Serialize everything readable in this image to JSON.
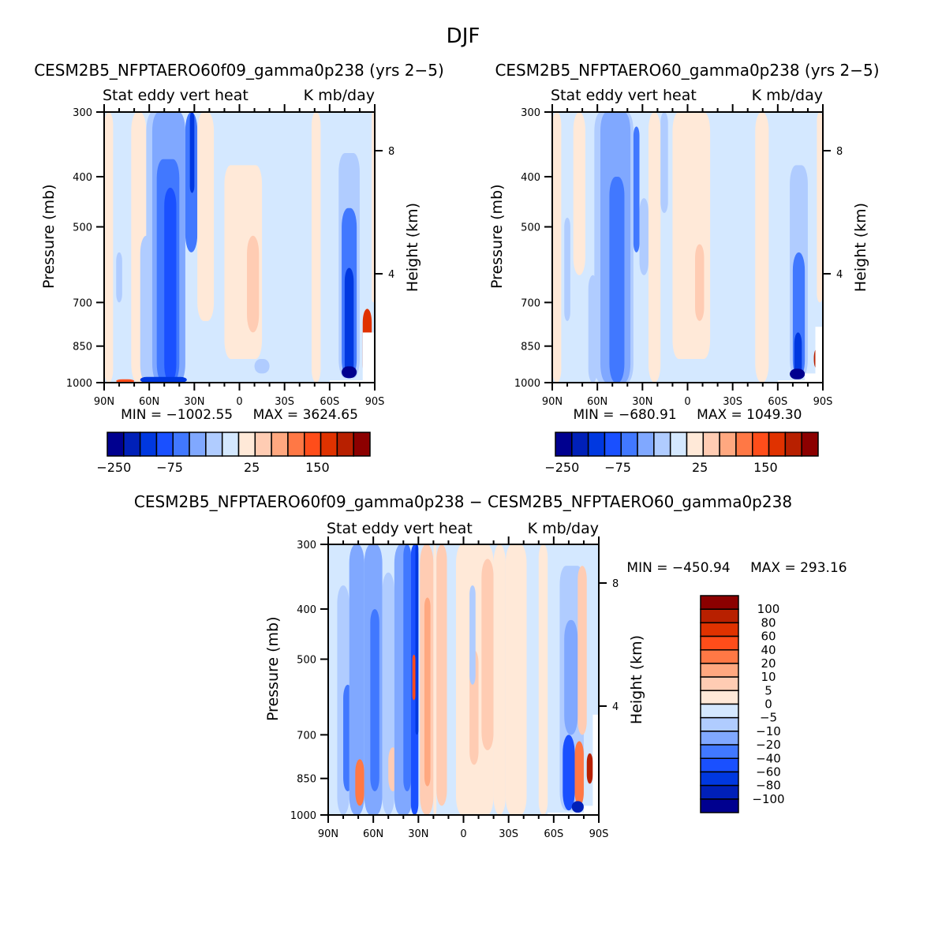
{
  "figure": {
    "title": "DJF",
    "colors": {
      "main_scale": [
        "#00008f",
        "#0020b8",
        "#0038e0",
        "#1a50ff",
        "#4178ff",
        "#80a8ff",
        "#b0ccff",
        "#d4e8ff",
        "#ffe9d8",
        "#ffccb3",
        "#ffa880",
        "#ff7845",
        "#ff4d1a",
        "#e03200",
        "#b82000",
        "#8c0000"
      ],
      "missing": "#ffffff",
      "frame": "#000000"
    }
  },
  "chart_data": [
    {
      "id": "panel-1",
      "type": "heatmap",
      "title": "CESM2B5_NFPTAERO60f09_gamma0p238 (yrs 2−5)",
      "subtitle_left": "Stat eddy vert heat",
      "subtitle_right": "K mb/day",
      "xlabel": "",
      "ylabel": "Pressure (mb)",
      "ylabel_right": "Height (km)",
      "x_ticks": [
        "90N",
        "60N",
        "30N",
        "0",
        "30S",
        "60S",
        "90S"
      ],
      "x_range": [
        90,
        -90
      ],
      "y_ticks": [
        "300",
        "400",
        "500",
        "700",
        "850",
        "1000"
      ],
      "y_tick_values": [
        300,
        400,
        500,
        700,
        850,
        1000
      ],
      "y_range": [
        300,
        1000
      ],
      "y_scale": "log",
      "y_right_ticks": [
        "8",
        "4"
      ],
      "stats": "MIN = −1002.55   MAX = 3624.65",
      "min": -1002.55,
      "max": 3624.65,
      "colorbar": {
        "orientation": "horizontal",
        "labels": [
          "−250",
          "−75",
          "25",
          "150"
        ],
        "n_bins": 16
      },
      "bands": [
        {
          "lat_from": 90,
          "lat_to": 84,
          "p_top": 300,
          "p_bot": 1000,
          "bin": 8
        },
        {
          "lat_from": 84,
          "lat_to": 72,
          "p_top": 330,
          "p_bot": 980,
          "bin": 7
        },
        {
          "lat_from": 82,
          "lat_to": 78,
          "p_top": 560,
          "p_bot": 700,
          "bin": 6
        },
        {
          "lat_from": 72,
          "lat_to": 62,
          "p_top": 300,
          "p_bot": 1000,
          "bin": 8
        },
        {
          "lat_from": 66,
          "lat_to": 58,
          "p_top": 520,
          "p_bot": 1000,
          "bin": 6
        },
        {
          "lat_from": 62,
          "lat_to": 50,
          "p_top": 300,
          "p_bot": 1000,
          "bin": 6
        },
        {
          "lat_from": 58,
          "lat_to": 36,
          "p_top": 300,
          "p_bot": 1000,
          "bin": 5
        },
        {
          "lat_from": 55,
          "lat_to": 40,
          "p_top": 370,
          "p_bot": 1000,
          "bin": 4
        },
        {
          "lat_from": 50,
          "lat_to": 42,
          "p_top": 420,
          "p_bot": 1000,
          "bin": 3
        },
        {
          "lat_from": 36,
          "lat_to": 28,
          "p_top": 300,
          "p_bot": 560,
          "bin": 4
        },
        {
          "lat_from": 33,
          "lat_to": 30,
          "p_top": 300,
          "p_bot": 430,
          "bin": 2
        },
        {
          "lat_from": 28,
          "lat_to": 17,
          "p_top": 300,
          "p_bot": 760,
          "bin": 8
        },
        {
          "lat_from": 10,
          "lat_to": -15,
          "p_top": 380,
          "p_bot": 900,
          "bin": 8
        },
        {
          "lat_from": -5,
          "lat_to": -13,
          "p_top": 520,
          "p_bot": 800,
          "bin": 9
        },
        {
          "lat_from": -10,
          "lat_to": -20,
          "p_top": 900,
          "p_bot": 960,
          "bin": 6
        },
        {
          "lat_from": -48,
          "lat_to": -54,
          "p_top": 300,
          "p_bot": 1000,
          "bin": 8
        },
        {
          "lat_from": -66,
          "lat_to": -80,
          "p_top": 360,
          "p_bot": 980,
          "bin": 6
        },
        {
          "lat_from": -68,
          "lat_to": -78,
          "p_top": 460,
          "p_bot": 980,
          "bin": 4
        },
        {
          "lat_from": -70,
          "lat_to": -76,
          "p_top": 600,
          "p_bot": 980,
          "bin": 2
        },
        {
          "lat_from": -68,
          "lat_to": -78,
          "p_top": 930,
          "p_bot": 980,
          "bin": 0
        },
        {
          "lat_from": -82,
          "lat_to": -88,
          "p_top": 720,
          "p_bot": 980,
          "bin": 13
        },
        {
          "lat_from": -88,
          "lat_to": -90,
          "p_top": 300,
          "p_bot": 700,
          "bin": 8
        },
        {
          "lat_from": 82,
          "lat_to": 70,
          "p_top": 985,
          "p_bot": 1000,
          "bin": 12
        },
        {
          "lat_from": 66,
          "lat_to": 35,
          "p_top": 975,
          "p_bot": 1000,
          "bin": 2
        }
      ],
      "missing_regions": [
        {
          "lat_from": -60,
          "lat_to": -90,
          "p_top": 990,
          "p_bot": 1000
        },
        {
          "lat_from": -82,
          "lat_to": -90,
          "p_top": 800,
          "p_bot": 1000
        }
      ]
    },
    {
      "id": "panel-2",
      "type": "heatmap",
      "title": "CESM2B5_NFPTAERO60_gamma0p238 (yrs 2−5)",
      "subtitle_left": "Stat eddy vert heat",
      "subtitle_right": "K mb/day",
      "xlabel": "",
      "ylabel": "Pressure (mb)",
      "ylabel_right": "Height (km)",
      "x_ticks": [
        "90N",
        "60N",
        "30N",
        "0",
        "30S",
        "60S",
        "90S"
      ],
      "x_range": [
        90,
        -90
      ],
      "y_ticks": [
        "300",
        "400",
        "500",
        "700",
        "850",
        "1000"
      ],
      "y_tick_values": [
        300,
        400,
        500,
        700,
        850,
        1000
      ],
      "y_range": [
        300,
        1000
      ],
      "y_scale": "log",
      "y_right_ticks": [
        "8",
        "4"
      ],
      "stats": "MIN = −680.91   MAX = 1049.30",
      "min": -680.91,
      "max": 1049.3,
      "colorbar": {
        "orientation": "horizontal",
        "labels": [
          "−250",
          "−75",
          "25",
          "150"
        ],
        "n_bins": 16
      },
      "bands": [
        {
          "lat_from": 90,
          "lat_to": 84,
          "p_top": 300,
          "p_bot": 1000,
          "bin": 8
        },
        {
          "lat_from": 84,
          "lat_to": 76,
          "p_top": 320,
          "p_bot": 1000,
          "bin": 7
        },
        {
          "lat_from": 82,
          "lat_to": 78,
          "p_top": 480,
          "p_bot": 760,
          "bin": 6
        },
        {
          "lat_from": 76,
          "lat_to": 68,
          "p_top": 300,
          "p_bot": 620,
          "bin": 8
        },
        {
          "lat_from": 66,
          "lat_to": 60,
          "p_top": 620,
          "p_bot": 1000,
          "bin": 6
        },
        {
          "lat_from": 62,
          "lat_to": 36,
          "p_top": 300,
          "p_bot": 1000,
          "bin": 6
        },
        {
          "lat_from": 58,
          "lat_to": 38,
          "p_top": 300,
          "p_bot": 1000,
          "bin": 5
        },
        {
          "lat_from": 52,
          "lat_to": 42,
          "p_top": 400,
          "p_bot": 1000,
          "bin": 4
        },
        {
          "lat_from": 36,
          "lat_to": 32,
          "p_top": 320,
          "p_bot": 560,
          "bin": 4
        },
        {
          "lat_from": 32,
          "lat_to": 26,
          "p_top": 440,
          "p_bot": 620,
          "bin": 6
        },
        {
          "lat_from": 26,
          "lat_to": 18,
          "p_top": 300,
          "p_bot": 1000,
          "bin": 8
        },
        {
          "lat_from": 18,
          "lat_to": 13,
          "p_top": 300,
          "p_bot": 470,
          "bin": 6
        },
        {
          "lat_from": 10,
          "lat_to": -15,
          "p_top": 300,
          "p_bot": 900,
          "bin": 8
        },
        {
          "lat_from": -5,
          "lat_to": -11,
          "p_top": 540,
          "p_bot": 760,
          "bin": 9
        },
        {
          "lat_from": -45,
          "lat_to": -54,
          "p_top": 300,
          "p_bot": 1000,
          "bin": 8
        },
        {
          "lat_from": -68,
          "lat_to": -80,
          "p_top": 380,
          "p_bot": 980,
          "bin": 6
        },
        {
          "lat_from": -70,
          "lat_to": -78,
          "p_top": 560,
          "p_bot": 980,
          "bin": 4
        },
        {
          "lat_from": -71,
          "lat_to": -76,
          "p_top": 800,
          "p_bot": 980,
          "bin": 2
        },
        {
          "lat_from": -68,
          "lat_to": -78,
          "p_top": 940,
          "p_bot": 985,
          "bin": 0
        },
        {
          "lat_from": -84,
          "lat_to": -88,
          "p_top": 860,
          "p_bot": 940,
          "bin": 14
        },
        {
          "lat_from": -86,
          "lat_to": -90,
          "p_top": 300,
          "p_bot": 700,
          "bin": 8
        }
      ],
      "missing_regions": [
        {
          "lat_from": -60,
          "lat_to": -90,
          "p_top": 990,
          "p_bot": 1000
        },
        {
          "lat_from": -78,
          "lat_to": -90,
          "p_top": 960,
          "p_bot": 1000
        },
        {
          "lat_from": -85,
          "lat_to": -90,
          "p_top": 780,
          "p_bot": 1000
        }
      ]
    },
    {
      "id": "panel-diff",
      "type": "heatmap",
      "title": "CESM2B5_NFPTAERO60f09_gamma0p238 − CESM2B5_NFPTAERO60_gamma0p238",
      "subtitle_left": "Stat eddy vert heat",
      "subtitle_right": "K mb/day",
      "xlabel": "",
      "ylabel": "Pressure (mb)",
      "ylabel_right": "Height (km)",
      "x_ticks": [
        "90N",
        "60N",
        "30N",
        "0",
        "30S",
        "60S",
        "90S"
      ],
      "x_range": [
        90,
        -90
      ],
      "y_ticks": [
        "300",
        "400",
        "500",
        "700",
        "850",
        "1000"
      ],
      "y_tick_values": [
        300,
        400,
        500,
        700,
        850,
        1000
      ],
      "y_range": [
        300,
        1000
      ],
      "y_scale": "log",
      "y_right_ticks": [
        "8",
        "4"
      ],
      "stats": "MIN = −450.94   MAX = 293.16",
      "min": -450.94,
      "max": 293.16,
      "colorbar": {
        "orientation": "vertical",
        "labels": [
          "100",
          "80",
          "60",
          "40",
          "20",
          "10",
          "5",
          "0",
          "−5",
          "−10",
          "−20",
          "−40",
          "−60",
          "−80",
          "−100"
        ],
        "n_bins": 16
      },
      "bands": [
        {
          "lat_from": 90,
          "lat_to": 84,
          "p_top": 300,
          "p_bot": 1000,
          "bin": 7
        },
        {
          "lat_from": 84,
          "lat_to": 76,
          "p_top": 360,
          "p_bot": 1000,
          "bin": 6
        },
        {
          "lat_from": 80,
          "lat_to": 74,
          "p_top": 560,
          "p_bot": 900,
          "bin": 4
        },
        {
          "lat_from": 76,
          "lat_to": 66,
          "p_top": 300,
          "p_bot": 1000,
          "bin": 5
        },
        {
          "lat_from": 72,
          "lat_to": 66,
          "p_top": 780,
          "p_bot": 960,
          "bin": 11
        },
        {
          "lat_from": 66,
          "lat_to": 54,
          "p_top": 300,
          "p_bot": 1000,
          "bin": 5
        },
        {
          "lat_from": 62,
          "lat_to": 56,
          "p_top": 400,
          "p_bot": 900,
          "bin": 4
        },
        {
          "lat_from": 54,
          "lat_to": 46,
          "p_top": 340,
          "p_bot": 1000,
          "bin": 6
        },
        {
          "lat_from": 50,
          "lat_to": 44,
          "p_top": 740,
          "p_bot": 900,
          "bin": 9
        },
        {
          "lat_from": 46,
          "lat_to": 34,
          "p_top": 300,
          "p_bot": 1000,
          "bin": 5
        },
        {
          "lat_from": 40,
          "lat_to": 35,
          "p_top": 300,
          "p_bot": 900,
          "bin": 4
        },
        {
          "lat_from": 35,
          "lat_to": 30,
          "p_top": 300,
          "p_bot": 1000,
          "bin": 3
        },
        {
          "lat_from": 32,
          "lat_to": 30,
          "p_top": 300,
          "p_bot": 700,
          "bin": 2
        },
        {
          "lat_from": 34,
          "lat_to": 32,
          "p_top": 490,
          "p_bot": 600,
          "bin": 12
        },
        {
          "lat_from": 29,
          "lat_to": 20,
          "p_top": 300,
          "p_bot": 1000,
          "bin": 9
        },
        {
          "lat_from": 26,
          "lat_to": 22,
          "p_top": 380,
          "p_bot": 880,
          "bin": 10
        },
        {
          "lat_from": 20,
          "lat_to": 18,
          "p_top": 300,
          "p_bot": 1000,
          "bin": 8
        },
        {
          "lat_from": 18,
          "lat_to": 11,
          "p_top": 300,
          "p_bot": 960,
          "bin": 9
        },
        {
          "lat_from": 11,
          "lat_to": 5,
          "p_top": 300,
          "p_bot": 1000,
          "bin": 7
        },
        {
          "lat_from": 5,
          "lat_to": -20,
          "p_top": 300,
          "p_bot": 1000,
          "bin": 8
        },
        {
          "lat_from": -4,
          "lat_to": -10,
          "p_top": 480,
          "p_bot": 800,
          "bin": 9
        },
        {
          "lat_from": -12,
          "lat_to": -20,
          "p_top": 320,
          "p_bot": 750,
          "bin": 9
        },
        {
          "lat_from": -4,
          "lat_to": -8,
          "p_top": 360,
          "p_bot": 560,
          "bin": 6
        },
        {
          "lat_from": -20,
          "lat_to": -28,
          "p_top": 300,
          "p_bot": 1000,
          "bin": 8
        },
        {
          "lat_from": -28,
          "lat_to": -42,
          "p_top": 300,
          "p_bot": 1000,
          "bin": 8
        },
        {
          "lat_from": -42,
          "lat_to": -50,
          "p_top": 300,
          "p_bot": 1000,
          "bin": 7
        },
        {
          "lat_from": -50,
          "lat_to": -56,
          "p_top": 300,
          "p_bot": 1000,
          "bin": 8
        },
        {
          "lat_from": -64,
          "lat_to": -80,
          "p_top": 330,
          "p_bot": 980,
          "bin": 6
        },
        {
          "lat_from": -67,
          "lat_to": -76,
          "p_top": 420,
          "p_bot": 700,
          "bin": 5
        },
        {
          "lat_from": -76,
          "lat_to": -82,
          "p_top": 330,
          "p_bot": 700,
          "bin": 9
        },
        {
          "lat_from": -66,
          "lat_to": -74,
          "p_top": 700,
          "p_bot": 980,
          "bin": 3
        },
        {
          "lat_from": -74,
          "lat_to": -80,
          "p_top": 720,
          "p_bot": 960,
          "bin": 11
        },
        {
          "lat_from": -72,
          "lat_to": -80,
          "p_top": 940,
          "p_bot": 990,
          "bin": 1
        },
        {
          "lat_from": -82,
          "lat_to": -86,
          "p_top": 760,
          "p_bot": 870,
          "bin": 14
        },
        {
          "lat_from": -86,
          "lat_to": -90,
          "p_top": 300,
          "p_bot": 620,
          "bin": 7
        }
      ],
      "missing_regions": [
        {
          "lat_from": -56,
          "lat_to": -90,
          "p_top": 990,
          "p_bot": 1000
        },
        {
          "lat_from": -80,
          "lat_to": -90,
          "p_top": 960,
          "p_bot": 1000
        },
        {
          "lat_from": -86,
          "lat_to": -90,
          "p_top": 640,
          "p_bot": 1000
        }
      ]
    }
  ]
}
